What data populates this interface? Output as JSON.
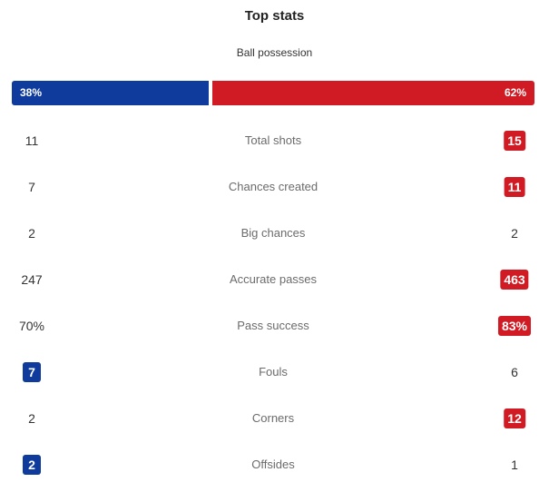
{
  "title": "Top stats",
  "possession": {
    "label": "Ball possession",
    "home": "38%",
    "away": "62%",
    "home_fraction": 0.38,
    "away_fraction": 0.62,
    "home_color": "#0f3b9c",
    "away_color": "#d11b24"
  },
  "stats": [
    {
      "label": "Total shots",
      "home": "11",
      "away": "15",
      "highlight": "away"
    },
    {
      "label": "Chances created",
      "home": "7",
      "away": "11",
      "highlight": "away"
    },
    {
      "label": "Big chances",
      "home": "2",
      "away": "2",
      "highlight": "none"
    },
    {
      "label": "Accurate passes",
      "home": "247",
      "away": "463",
      "highlight": "away"
    },
    {
      "label": "Pass success",
      "home": "70%",
      "away": "83%",
      "highlight": "away"
    },
    {
      "label": "Fouls",
      "home": "7",
      "away": "6",
      "highlight": "home"
    },
    {
      "label": "Corners",
      "home": "2",
      "away": "12",
      "highlight": "away"
    },
    {
      "label": "Offsides",
      "home": "2",
      "away": "1",
      "highlight": "home"
    }
  ]
}
